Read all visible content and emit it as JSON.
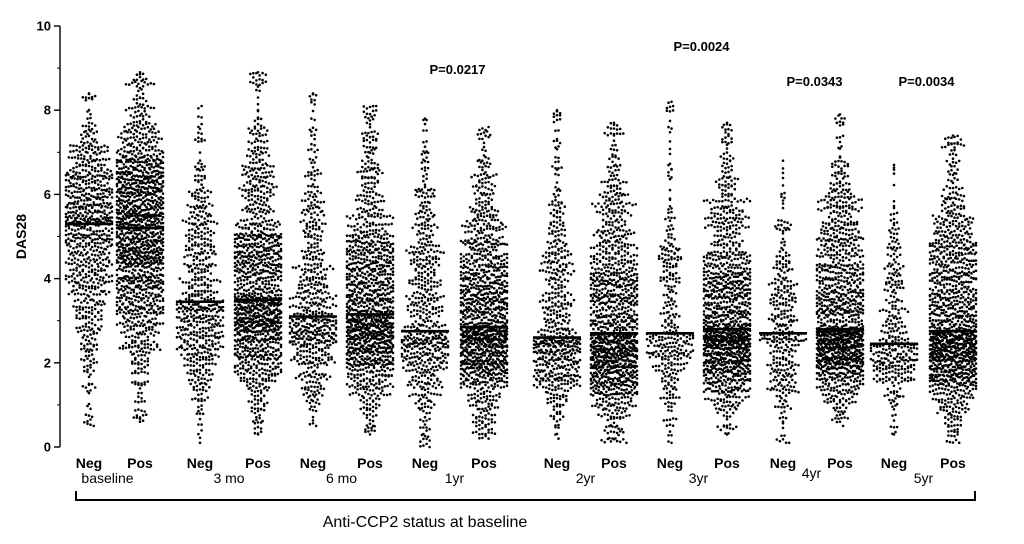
{
  "chart_data": {
    "type": "scatter",
    "subtype": "dot-strip",
    "ylabel": "DAS28",
    "ylim": [
      0,
      10
    ],
    "yticks": [
      "0",
      "2",
      "4",
      "6",
      "8",
      "10"
    ],
    "xlabel": "Anti-CCP2 status at baseline",
    "grid": false,
    "point_color": "#000000",
    "categories": [
      "Neg",
      "Pos",
      "Neg",
      "Pos",
      "Neg",
      "Pos",
      "Neg",
      "Pos",
      "Neg",
      "Pos",
      "Neg",
      "Pos",
      "Neg",
      "Pos",
      "Neg",
      "Pos"
    ],
    "groups": [
      {
        "label": "baseline",
        "p_value": "",
        "series": [
          {
            "status": "Neg",
            "median": 5.3,
            "min": 0.5,
            "max": 8.4
          },
          {
            "status": "Pos",
            "median": 5.2,
            "min": 0.6,
            "max": 8.9
          }
        ]
      },
      {
        "label": "3 mo",
        "p_value": "",
        "series": [
          {
            "status": "Neg",
            "median": 3.45,
            "min": 0.1,
            "max": 8.1
          },
          {
            "status": "Pos",
            "median": 3.5,
            "min": 0.3,
            "max": 8.9
          }
        ]
      },
      {
        "label": "6 mo",
        "p_value": "",
        "series": [
          {
            "status": "Neg",
            "median": 3.1,
            "min": 0.5,
            "max": 8.4
          },
          {
            "status": "Pos",
            "median": 3.15,
            "min": 0.3,
            "max": 8.1
          }
        ]
      },
      {
        "label": "1yr",
        "p_value": "P=0.0217",
        "series": [
          {
            "status": "Neg",
            "median": 2.75,
            "min": 0.0,
            "max": 7.8
          },
          {
            "status": "Pos",
            "median": 2.85,
            "min": 0.2,
            "max": 7.6
          }
        ]
      },
      {
        "label": "2yr",
        "p_value": "",
        "series": [
          {
            "status": "Neg",
            "median": 2.6,
            "min": 0.2,
            "max": 8.0
          },
          {
            "status": "Pos",
            "median": 2.7,
            "min": 0.1,
            "max": 7.7
          }
        ]
      },
      {
        "label": "3yr",
        "p_value": "P=0.0024",
        "series": [
          {
            "status": "Neg",
            "median": 2.7,
            "min": 0.1,
            "max": 8.2
          },
          {
            "status": "Pos",
            "median": 2.8,
            "min": 0.3,
            "max": 7.7
          }
        ]
      },
      {
        "label": "4yr",
        "p_value": "P=0.0343",
        "series": [
          {
            "status": "Neg",
            "median": 2.7,
            "min": 0.1,
            "max": 6.8
          },
          {
            "status": "Pos",
            "median": 2.8,
            "min": 0.5,
            "max": 7.9
          }
        ]
      },
      {
        "label": "5yr",
        "p_value": "P=0.0034",
        "series": [
          {
            "status": "Neg",
            "median": 2.45,
            "min": 0.3,
            "max": 6.7
          },
          {
            "status": "Pos",
            "median": 2.75,
            "min": 0.1,
            "max": 7.4
          }
        ]
      }
    ]
  }
}
